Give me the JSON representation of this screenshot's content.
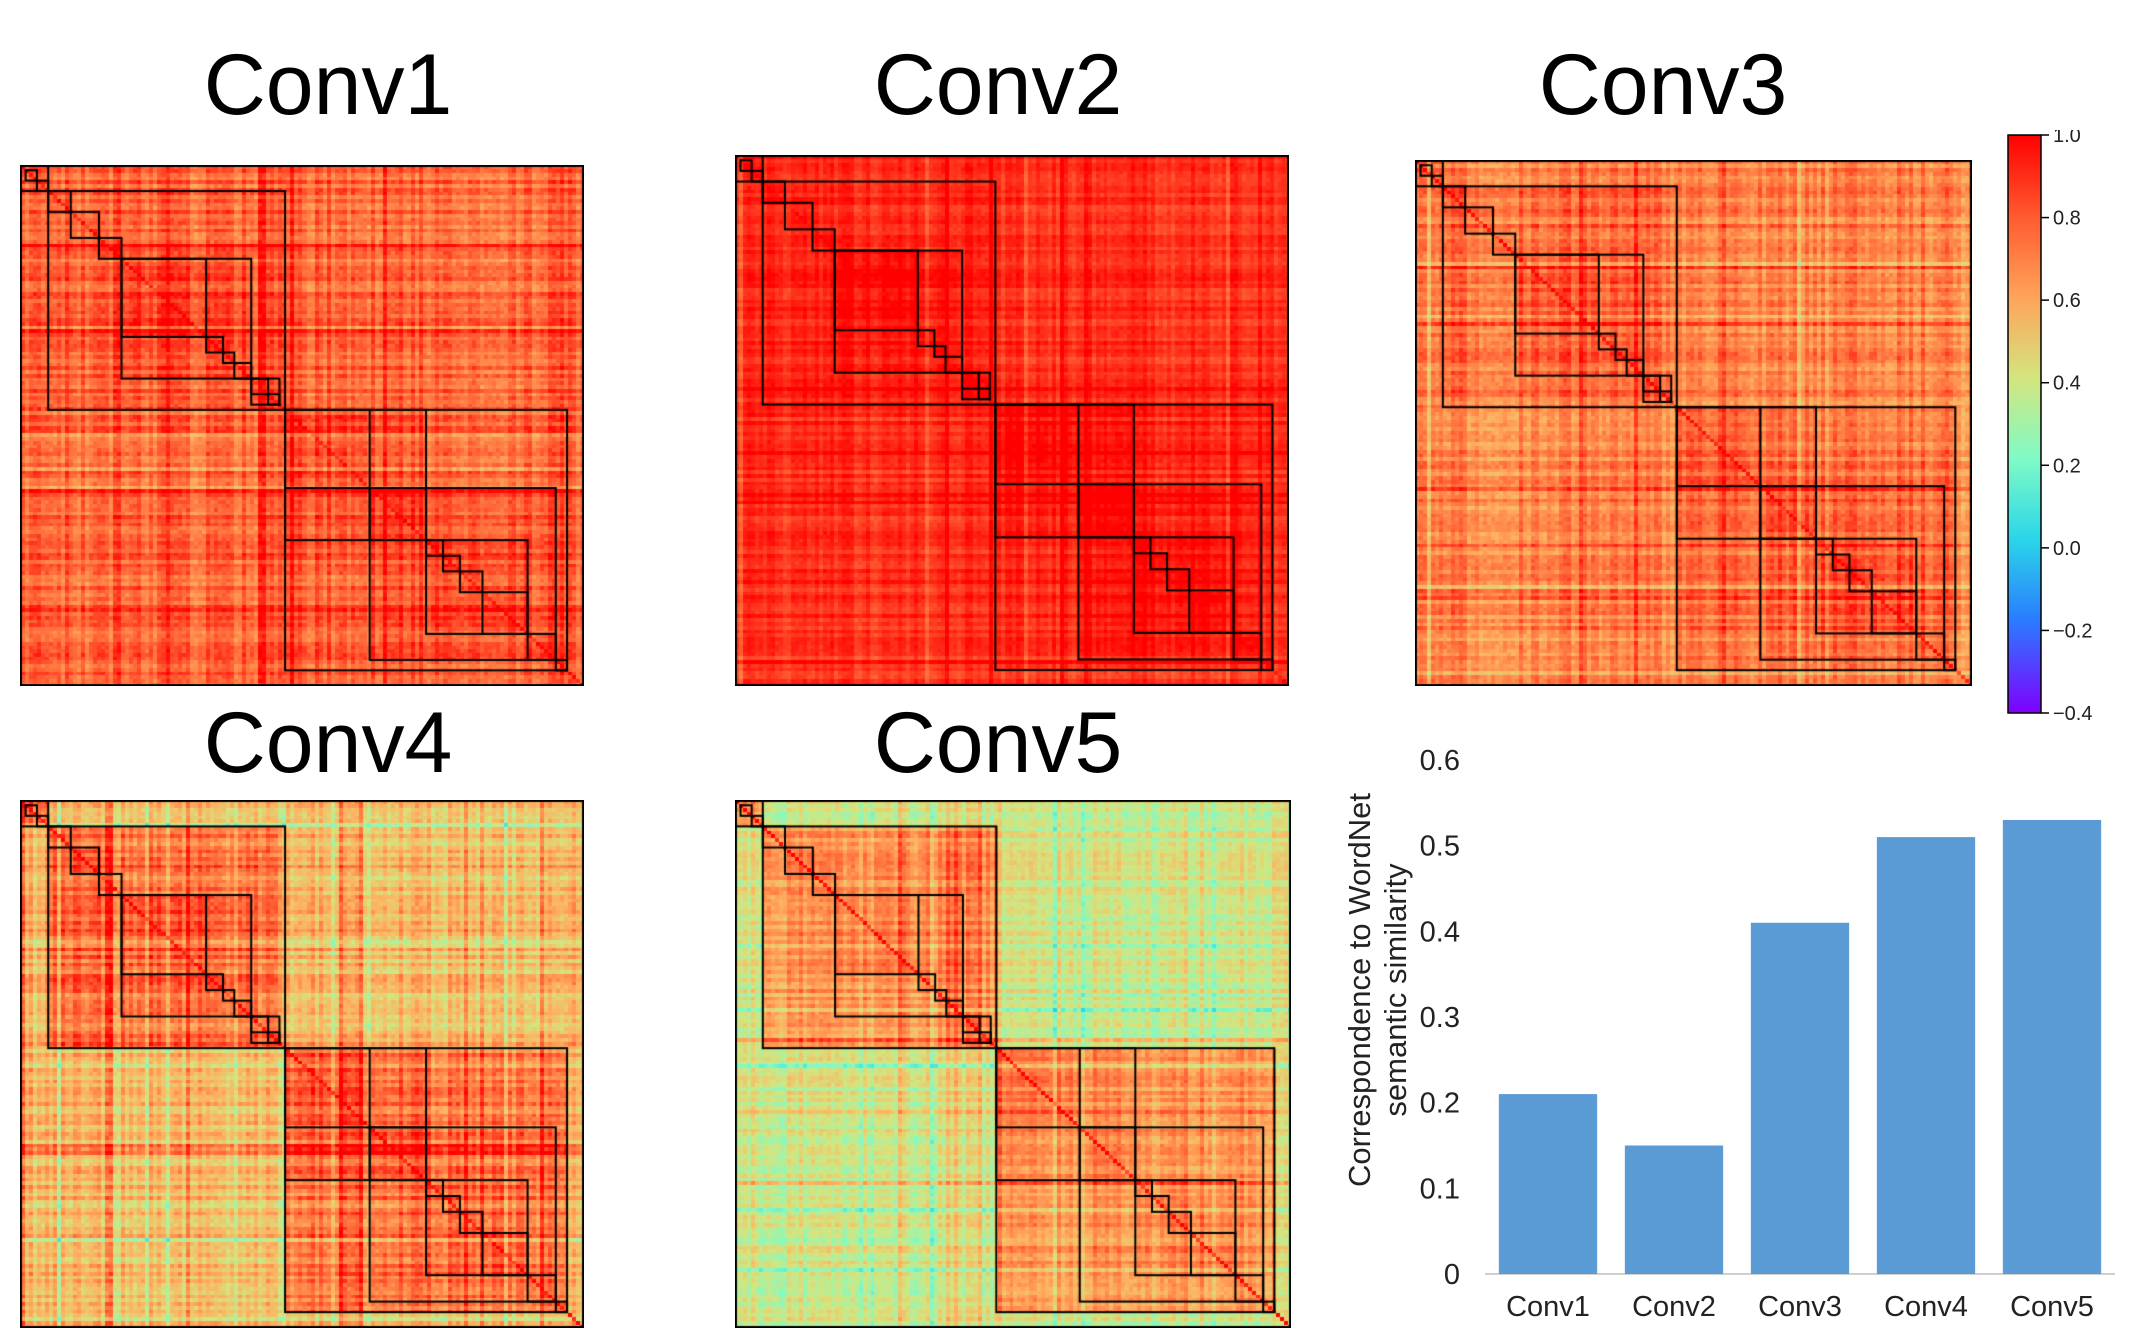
{
  "panels": [
    {
      "id": "conv1",
      "title": "Conv1",
      "mean": 0.8,
      "offdiag": 0.78,
      "noise": 0.1,
      "vstripes": 0.08
    },
    {
      "id": "conv2",
      "title": "Conv2",
      "mean": 0.92,
      "offdiag": 0.9,
      "noise": 0.05,
      "vstripes": 0.05
    },
    {
      "id": "conv3",
      "title": "Conv3",
      "mean": 0.75,
      "offdiag": 0.7,
      "noise": 0.1,
      "vstripes": 0.08
    },
    {
      "id": "conv4",
      "title": "Conv4",
      "mean": 0.72,
      "offdiag": 0.52,
      "noise": 0.12,
      "vstripes": 0.1
    },
    {
      "id": "conv5",
      "title": "Conv5",
      "mean": 0.65,
      "offdiag": 0.38,
      "noise": 0.1,
      "vstripes": 0.08
    }
  ],
  "colorbar": {
    "min": -0.4,
    "max": 1.0,
    "ticks": [
      "1.0",
      "0.8",
      "0.6",
      "0.4",
      "0.2",
      "0.0",
      "−0.2",
      "−0.4"
    ],
    "colormap": "rainbow"
  },
  "chart_data": [
    {
      "type": "heatmap",
      "panels": [
        "Conv1",
        "Conv2",
        "Conv3",
        "Conv4",
        "Conv5"
      ],
      "value_range": [
        -0.4,
        1.0
      ],
      "colormap": "rainbow",
      "colorbar_ticks": [
        1.0,
        0.8,
        0.6,
        0.4,
        0.2,
        0.0,
        -0.2,
        -0.4
      ]
    },
    {
      "type": "bar",
      "categories": [
        "Conv1",
        "Conv2",
        "Conv3",
        "Conv4",
        "Conv5"
      ],
      "values": [
        0.21,
        0.15,
        0.41,
        0.51,
        0.53
      ],
      "ylabel": "Correspondence to WordNet semantic similarity",
      "ylabel_lines": [
        "Correspondence to WordNet",
        "semantic similarity"
      ],
      "ylim": [
        0,
        0.6
      ],
      "yticks": [
        "0",
        "0.1",
        "0.2",
        "0.3",
        "0.4",
        "0.5",
        "0.6"
      ],
      "bar_color": "#5b9bd5",
      "grid": false
    }
  ]
}
